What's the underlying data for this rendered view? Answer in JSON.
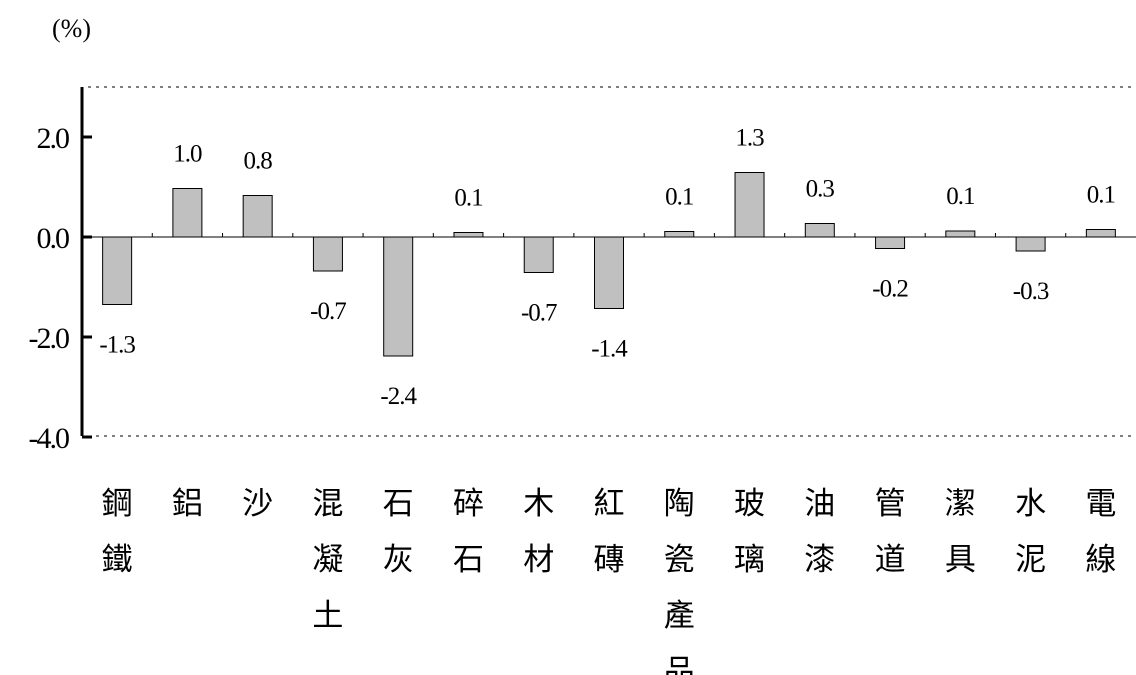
{
  "chart_data": {
    "type": "bar",
    "unit_label": "(%)",
    "categories": [
      "鋼鐵",
      "鋁",
      "沙",
      "混凝土",
      "石灰",
      "碎石",
      "木材",
      "紅磚",
      "陶瓷產品",
      "玻璃",
      "油漆",
      "管道",
      "潔具",
      "水泥",
      "電線"
    ],
    "values": [
      -1.35,
      0.97,
      0.83,
      -0.68,
      -2.38,
      0.09,
      -0.71,
      -1.43,
      0.11,
      1.29,
      0.27,
      -0.23,
      0.12,
      -0.28,
      0.15
    ],
    "data_labels": [
      "-1.3",
      "1.0",
      "0.8",
      "-0.7",
      "-2.4",
      "0.1",
      "-0.7",
      "-1.4",
      "0.1",
      "1.3",
      "0.3",
      "-0.2",
      "0.1",
      "-0.3",
      "0.1"
    ],
    "y_ticks": [
      2.0,
      0.0,
      -2.0,
      -4.0
    ],
    "y_tick_labels": [
      "2.0",
      "0.0",
      "-2.0",
      "-4.0"
    ],
    "ylim": [
      -4.0,
      3.0
    ],
    "title": "",
    "xlabel": "",
    "ylabel": "",
    "grid": "dotted lines at top and bottom only",
    "legend": "none",
    "colors": {
      "bar_fill": "#c0c0c0",
      "bar_stroke": "#000000",
      "axis": "#000000",
      "text": "#000000"
    }
  }
}
